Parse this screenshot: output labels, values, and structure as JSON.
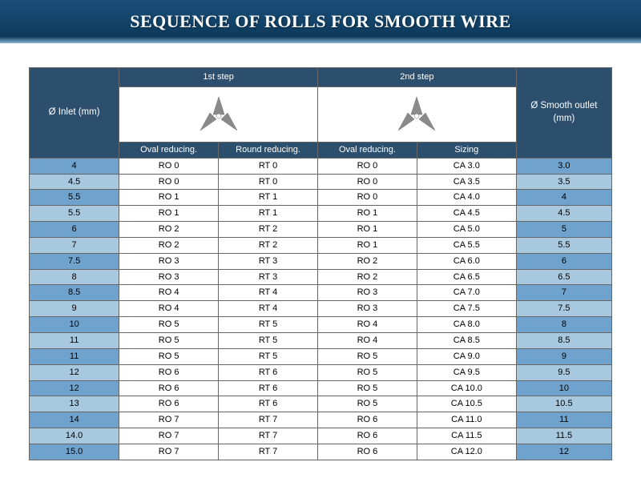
{
  "title": "SEQUENCE OF ROLLS FOR SMOOTH WIRE",
  "colors": {
    "title_bg_top": "#1a4f7a",
    "title_bg_bottom": "#0d3a5c",
    "title_edge": "#8db5d8",
    "title_text": "#ffffff",
    "header_bg": "#2c4f6e",
    "header_text": "#ffffff",
    "band_light": "#a8c8e0",
    "band_dark": "#6fa3ce",
    "border": "#666666",
    "body_bg": "#ffffff",
    "roll_fill": "#8a8a8a",
    "roll_edge": "#6a6a6a"
  },
  "font_sizes": {
    "title": 22,
    "header": 11.5,
    "body": 11
  },
  "headers": {
    "inlet": "Ø Inlet (mm)",
    "step1": "1st step",
    "step2": "2nd step",
    "outlet": "Ø Smooth outlet (mm)",
    "oval": "Oval reducing.",
    "round": "Round reducing.",
    "sizing": "Sizing"
  },
  "columns": [
    "inlet",
    "step1_oval",
    "step1_round",
    "step2_oval",
    "step2_sizing",
    "outlet"
  ],
  "rows": [
    {
      "band": "b",
      "inlet": "4",
      "step1_oval": "RO 0",
      "step1_round": "RT 0",
      "step2_oval": "RO 0",
      "step2_sizing": "CA 3.0",
      "outlet": "3.0"
    },
    {
      "band": "a",
      "inlet": "4.5",
      "step1_oval": "RO 0",
      "step1_round": "RT 0",
      "step2_oval": "RO 0",
      "step2_sizing": "CA 3.5",
      "outlet": "3.5"
    },
    {
      "band": "b",
      "inlet": "5.5",
      "step1_oval": "RO 1",
      "step1_round": "RT 1",
      "step2_oval": "RO 0",
      "step2_sizing": "CA 4.0",
      "outlet": "4"
    },
    {
      "band": "a",
      "inlet": "5.5",
      "step1_oval": "RO 1",
      "step1_round": "RT 1",
      "step2_oval": "RO 1",
      "step2_sizing": "CA 4.5",
      "outlet": "4.5"
    },
    {
      "band": "b",
      "inlet": "6",
      "step1_oval": "RO 2",
      "step1_round": "RT 2",
      "step2_oval": "RO 1",
      "step2_sizing": "CA 5.0",
      "outlet": "5"
    },
    {
      "band": "a",
      "inlet": "7",
      "step1_oval": "RO 2",
      "step1_round": "RT 2",
      "step2_oval": "RO 1",
      "step2_sizing": "CA 5.5",
      "outlet": "5.5"
    },
    {
      "band": "b",
      "inlet": "7.5",
      "step1_oval": "RO 3",
      "step1_round": "RT 3",
      "step2_oval": "RO 2",
      "step2_sizing": "CA 6.0",
      "outlet": "6"
    },
    {
      "band": "a",
      "inlet": "8",
      "step1_oval": "RO 3",
      "step1_round": "RT 3",
      "step2_oval": "RO 2",
      "step2_sizing": "CA 6.5",
      "outlet": "6.5"
    },
    {
      "band": "b",
      "inlet": "8.5",
      "step1_oval": "RO 4",
      "step1_round": "RT 4",
      "step2_oval": "RO 3",
      "step2_sizing": "CA 7.0",
      "outlet": "7"
    },
    {
      "band": "a",
      "inlet": "9",
      "step1_oval": "RO 4",
      "step1_round": "RT 4",
      "step2_oval": "RO 3",
      "step2_sizing": "CA 7.5",
      "outlet": "7.5"
    },
    {
      "band": "b",
      "inlet": "10",
      "step1_oval": "RO 5",
      "step1_round": "RT 5",
      "step2_oval": "RO 4",
      "step2_sizing": "CA 8.0",
      "outlet": "8"
    },
    {
      "band": "a",
      "inlet": "11",
      "step1_oval": "RO 5",
      "step1_round": "RT 5",
      "step2_oval": "RO 4",
      "step2_sizing": "CA 8.5",
      "outlet": "8.5"
    },
    {
      "band": "b",
      "inlet": "11",
      "step1_oval": "RO 5",
      "step1_round": "RT 5",
      "step2_oval": "RO 5",
      "step2_sizing": "CA 9.0",
      "outlet": "9"
    },
    {
      "band": "a",
      "inlet": "12",
      "step1_oval": "RO 6",
      "step1_round": "RT 6",
      "step2_oval": "RO 5",
      "step2_sizing": "CA 9.5",
      "outlet": "9.5"
    },
    {
      "band": "b",
      "inlet": "12",
      "step1_oval": "RO 6",
      "step1_round": "RT 6",
      "step2_oval": "RO 5",
      "step2_sizing": "CA 10.0",
      "outlet": "10"
    },
    {
      "band": "a",
      "inlet": "13",
      "step1_oval": "RO 6",
      "step1_round": "RT 6",
      "step2_oval": "RO 5",
      "step2_sizing": "CA 10.5",
      "outlet": "10.5"
    },
    {
      "band": "b",
      "inlet": "14",
      "step1_oval": "RO 7",
      "step1_round": "RT 7",
      "step2_oval": "RO 6",
      "step2_sizing": "CA 11.0",
      "outlet": "11"
    },
    {
      "band": "a",
      "inlet": "14.0",
      "step1_oval": "RO 7",
      "step1_round": "RT 7",
      "step2_oval": "RO 6",
      "step2_sizing": "CA 11.5",
      "outlet": "11.5"
    },
    {
      "band": "b",
      "inlet": "15.0",
      "step1_oval": "RO 7",
      "step1_round": "RT 7",
      "step2_oval": "RO 6",
      "step2_sizing": "CA 12.0",
      "outlet": "12"
    }
  ]
}
